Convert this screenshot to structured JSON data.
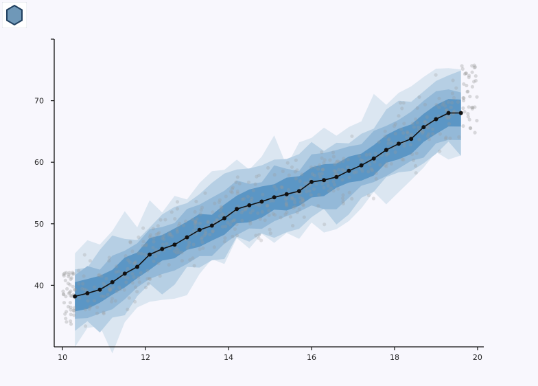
{
  "app": {
    "logo_icon": "hexagon-logo-icon",
    "logo_color": "#6f98b8"
  },
  "chart_data": {
    "type": "line",
    "title": "",
    "xlabel": "",
    "ylabel": "",
    "xlim": [
      9.8,
      20.15
    ],
    "ylim": [
      30,
      80
    ],
    "xticks": [
      10,
      12,
      14,
      16,
      18,
      20
    ],
    "yticks": [
      40,
      50,
      60,
      70
    ],
    "grid": false,
    "legend": "none",
    "colors": {
      "band_outer": "#dbe6f1",
      "band_middle": "#b6cfe4",
      "band_inner": "#94b9d8",
      "band_core": "#5b96c5",
      "line": "#111111",
      "scatter": "#9a9a9a"
    },
    "x": [
      10.3,
      10.6,
      10.9,
      11.2,
      11.5,
      11.8,
      12.1,
      12.4,
      12.7,
      13.0,
      13.3,
      13.6,
      13.9,
      14.2,
      14.5,
      14.8,
      15.1,
      15.4,
      15.7,
      16.0,
      16.3,
      16.6,
      16.9,
      17.2,
      17.5,
      17.8,
      18.1,
      18.4,
      18.7,
      19.0,
      19.3,
      19.6
    ],
    "series": [
      {
        "values": [
          38.2,
          38.7,
          39.3,
          40.5,
          41.9,
          43.0,
          45.0,
          45.9,
          46.6,
          47.8,
          49.0,
          49.7,
          50.9,
          52.4,
          53.0,
          53.6,
          54.3,
          54.8,
          55.3,
          56.8,
          57.1,
          57.6,
          58.6,
          59.5,
          60.6,
          62.0,
          63.0,
          63.8,
          65.7,
          67.0,
          68.0,
          68.0
        ]
      }
    ],
    "bands": {
      "core_half_width": 2.3,
      "inner_half_width": 4.2,
      "middle_half_width": 5.8,
      "outer_half_width": 7.5
    },
    "scatter": {
      "n_points": 520,
      "noise_sd": 3.6,
      "left_cluster_x": [
        10.0,
        10.3
      ],
      "left_cluster_y": [
        33.5,
        42.5
      ],
      "right_cluster_x": [
        19.6,
        20.0
      ],
      "right_cluster_y": [
        64.0,
        76.0
      ]
    }
  }
}
